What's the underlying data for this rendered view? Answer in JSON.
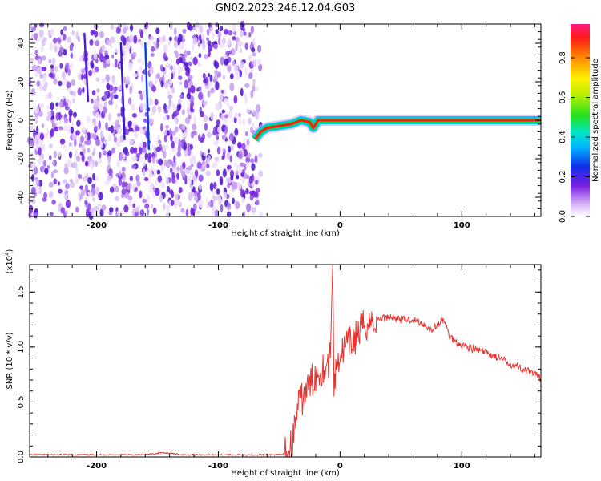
{
  "title": "GN02.2023.246.12.04.G03",
  "colorbar": {
    "label": "Normalized spectral amplitude",
    "ticks": [
      "0.0",
      "0.2",
      "0.4",
      "0.6",
      "0.8"
    ],
    "tick_values": [
      0.0,
      0.2,
      0.4,
      0.6,
      0.8
    ],
    "range": [
      0.0,
      0.97
    ]
  },
  "chart_data": [
    {
      "type": "heatmap",
      "title": "",
      "xlabel": "Height of straight line (km)",
      "ylabel": "Frequency (Hz)",
      "xlim": [
        -255,
        165
      ],
      "ylim": [
        -50,
        50
      ],
      "xticks": [
        -200,
        -100,
        0,
        100
      ],
      "yticks": [
        -40,
        -20,
        0,
        20,
        40
      ],
      "xtick_labels": [
        "-200",
        "-100",
        "0",
        "100"
      ],
      "ytick_labels": [
        "-40",
        "-20",
        "0",
        "20",
        "40"
      ],
      "noise_region_x": [
        -255,
        -65
      ],
      "signal_band_hz": [
        -2,
        2
      ],
      "signal_trace": [
        {
          "x": -70,
          "y": -10
        },
        {
          "x": -65,
          "y": -6
        },
        {
          "x": -60,
          "y": -4
        },
        {
          "x": -50,
          "y": -3
        },
        {
          "x": -40,
          "y": -2
        },
        {
          "x": -32,
          "y": 0
        },
        {
          "x": -25,
          "y": -1
        },
        {
          "x": -22,
          "y": -4
        },
        {
          "x": -18,
          "y": 0
        },
        {
          "x": 0,
          "y": 0
        },
        {
          "x": 80,
          "y": 0
        },
        {
          "x": 165,
          "y": 0
        }
      ],
      "grid": false
    },
    {
      "type": "line",
      "title": "",
      "xlabel": "Height of straight line (km)",
      "ylabel": "SNR (10 * v/v)",
      "yscale_label": "(x10",
      "yscale_exp": "4",
      "yscale_close": ")",
      "xlim": [
        -255,
        165
      ],
      "ylim": [
        0,
        1.75
      ],
      "xticks": [
        -200,
        -100,
        0,
        100
      ],
      "yticks": [
        0.0,
        0.5,
        1.0,
        1.5
      ],
      "xtick_labels": [
        "-200",
        "-100",
        "0",
        "100"
      ],
      "ytick_labels": [
        "0.0",
        "0.5",
        "1.0",
        "1.5"
      ],
      "series": [
        {
          "color": "#e8322e",
          "x": [
            -255,
            -220,
            -200,
            -160,
            -145,
            -130,
            -100,
            -70,
            -48,
            -42,
            -38,
            -35,
            -30,
            -25,
            -20,
            -15,
            -10,
            -8,
            -6,
            -5,
            -2,
            5,
            10,
            15,
            20,
            30,
            40,
            50,
            60,
            70,
            75,
            80,
            85,
            90,
            95,
            100,
            110,
            120,
            130,
            140,
            150,
            160,
            165
          ],
          "y": [
            0.02,
            0.02,
            0.02,
            0.02,
            0.04,
            0.02,
            0.02,
            0.02,
            0.02,
            0.05,
            0.2,
            0.45,
            0.55,
            0.65,
            0.75,
            0.8,
            0.85,
            0.9,
            1.8,
            0.65,
            0.9,
            1.0,
            1.05,
            1.12,
            1.2,
            1.25,
            1.28,
            1.25,
            1.25,
            1.2,
            1.15,
            1.2,
            1.25,
            1.1,
            1.05,
            1.02,
            0.98,
            0.95,
            0.9,
            0.85,
            0.8,
            0.75,
            0.71
          ]
        }
      ],
      "grid": false
    }
  ]
}
